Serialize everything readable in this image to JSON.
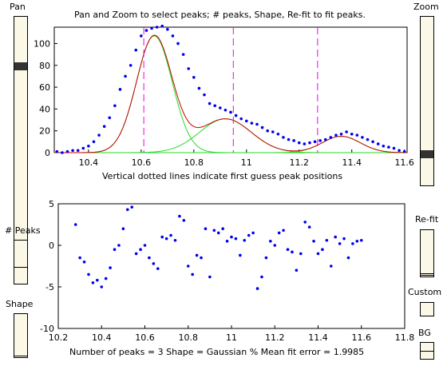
{
  "controls": {
    "pan_label": "Pan",
    "zoom_label": "Zoom",
    "peaks_label": "# Peaks",
    "shape_label": "Shape",
    "refit_label": "Re-fit",
    "custom_label": "Custom",
    "bg_label": "BG",
    "pan_level": 0.2,
    "zoom_level": 0.83
  },
  "top_plot": {
    "title": "Pan and Zoom to select peaks; # peaks, Shape, Re-fit to fit peaks.",
    "xlabel": "Vertical dotted lines indicate first guess peak positions",
    "xticks": [
      "10.4",
      "10.6",
      "10.8",
      "11",
      "11.2",
      "11.4",
      "11.6"
    ],
    "yticks": [
      "0",
      "20",
      "40",
      "60",
      "80",
      "100"
    ]
  },
  "bottom_plot": {
    "xlabel": "Number of peaks = 3     Shape = Gaussian    % Mean fit error = 1.9985",
    "xticks": [
      "10.2",
      "10.4",
      "10.6",
      "10.8",
      "11",
      "11.2",
      "11.4",
      "11.6",
      "11.8"
    ],
    "yticks": [
      "5",
      "0",
      "-5",
      "-10"
    ]
  },
  "chart_data": [
    {
      "type": "line",
      "title": "Pan and Zoom to select peaks; # peaks, Shape, Re-fit to fit peaks.",
      "xlabel": "Vertical dotted lines indicate first guess peak positions",
      "ylabel": "",
      "xlim": [
        10.27,
        11.61
      ],
      "ylim": [
        0,
        115
      ],
      "peak_guess_positions": [
        10.61,
        10.95,
        11.27
      ],
      "components": [
        {
          "center": 10.65,
          "height": 107,
          "width": 0.16
        },
        {
          "center": 10.92,
          "height": 31,
          "width": 0.23
        },
        {
          "center": 11.36,
          "height": 15,
          "width": 0.17
        }
      ],
      "x": [
        10.28,
        10.3,
        10.32,
        10.34,
        10.36,
        10.38,
        10.4,
        10.42,
        10.44,
        10.46,
        10.48,
        10.5,
        10.52,
        10.54,
        10.56,
        10.58,
        10.6,
        10.62,
        10.64,
        10.66,
        10.68,
        10.7,
        10.72,
        10.74,
        10.76,
        10.78,
        10.8,
        10.82,
        10.84,
        10.86,
        10.88,
        10.9,
        10.92,
        10.94,
        10.96,
        10.98,
        11.0,
        11.02,
        11.04,
        11.06,
        11.08,
        11.1,
        11.12,
        11.14,
        11.16,
        11.18,
        11.2,
        11.22,
        11.24,
        11.26,
        11.28,
        11.3,
        11.32,
        11.34,
        11.36,
        11.38,
        11.4,
        11.42,
        11.44,
        11.46,
        11.48,
        11.5,
        11.52,
        11.54,
        11.56,
        11.58,
        11.6
      ],
      "y": [
        1,
        0,
        1,
        2,
        2,
        4,
        6,
        10,
        16,
        24,
        32,
        43,
        58,
        70,
        80,
        94,
        107,
        112,
        114,
        115,
        116,
        113,
        107,
        100,
        90,
        77,
        69,
        59,
        53,
        45,
        43,
        41,
        39,
        37,
        34,
        31,
        29,
        27,
        26,
        23,
        20,
        19,
        17,
        14,
        12,
        11,
        9,
        8,
        9,
        10,
        11,
        12,
        14,
        16,
        17,
        19,
        17,
        16,
        14,
        12,
        10,
        8,
        6,
        5,
        4,
        2,
        1
      ]
    },
    {
      "type": "scatter",
      "title": "",
      "xlabel": "Number of peaks = 3     Shape = Gaussian    % Mean fit error = 1.9985",
      "ylabel": "",
      "xlim": [
        10.2,
        11.8
      ],
      "ylim": [
        -10,
        5
      ],
      "x": [
        10.28,
        10.3,
        10.32,
        10.34,
        10.36,
        10.38,
        10.4,
        10.42,
        10.44,
        10.46,
        10.48,
        10.5,
        10.52,
        10.54,
        10.56,
        10.58,
        10.6,
        10.62,
        10.64,
        10.66,
        10.68,
        10.7,
        10.72,
        10.74,
        10.76,
        10.78,
        10.8,
        10.82,
        10.84,
        10.86,
        10.88,
        10.9,
        10.92,
        10.94,
        10.96,
        10.98,
        11.0,
        11.02,
        11.04,
        11.06,
        11.08,
        11.1,
        11.12,
        11.14,
        11.16,
        11.18,
        11.2,
        11.22,
        11.24,
        11.26,
        11.28,
        11.3,
        11.32,
        11.34,
        11.36,
        11.38,
        11.4,
        11.42,
        11.44,
        11.46,
        11.48,
        11.5,
        11.52,
        11.54,
        11.56,
        11.58,
        11.6
      ],
      "y": [
        2.5,
        -1.5,
        -2,
        -3.5,
        -4.5,
        -4.2,
        -5,
        -4,
        -2.7,
        -0.5,
        0,
        2,
        4.3,
        4.6,
        -1,
        -0.5,
        0,
        -1.5,
        -2.2,
        -2.8,
        1,
        0.8,
        1.2,
        0.6,
        3.5,
        3,
        -2.5,
        -3.5,
        -1.2,
        -1.5,
        2,
        -3.8,
        1.8,
        1.5,
        2,
        0.5,
        1,
        0.8,
        -1.2,
        0.6,
        1.2,
        1.5,
        -5.2,
        -3.8,
        -1.5,
        0.5,
        0,
        1.5,
        1.8,
        -0.5,
        -0.8,
        -3,
        -1,
        2.8,
        2.2,
        0.5,
        -1,
        -0.5,
        0.6,
        -2.5,
        1,
        0.2,
        0.8,
        -1.5,
        0.2,
        0.5,
        0.6
      ]
    }
  ]
}
